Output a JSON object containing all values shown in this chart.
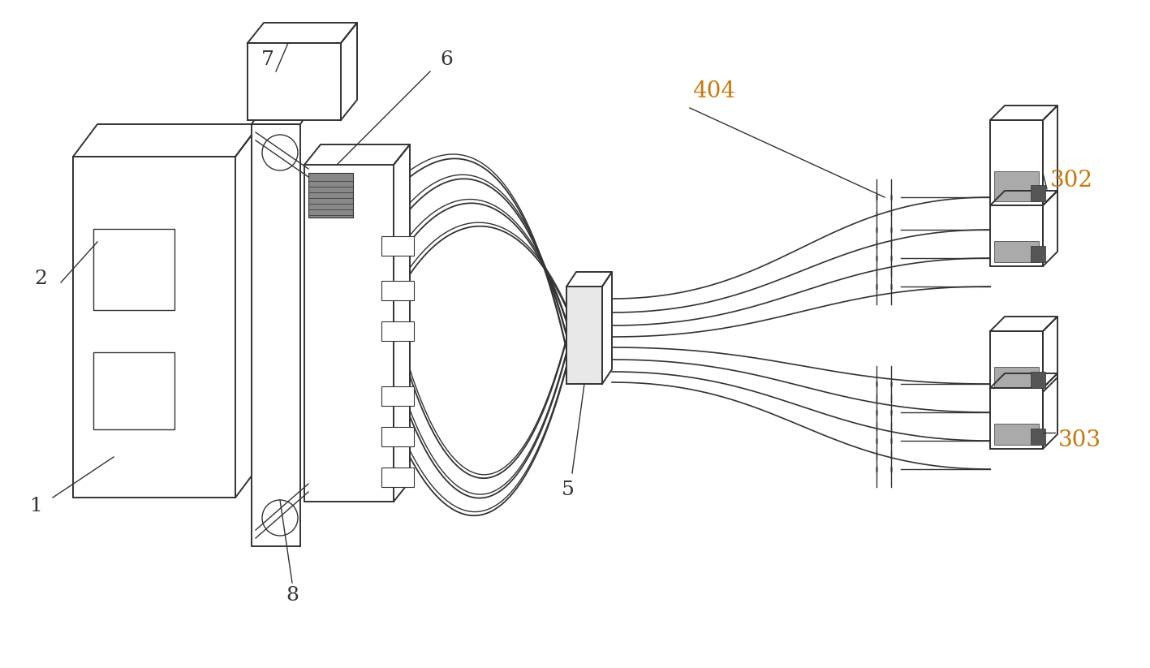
{
  "bg_color": "#ffffff",
  "line_color": "#333333",
  "label_color_black": "#333333",
  "label_color_orange": "#c8780a",
  "figsize": [
    14.17,
    8.23
  ],
  "dpi": 100
}
